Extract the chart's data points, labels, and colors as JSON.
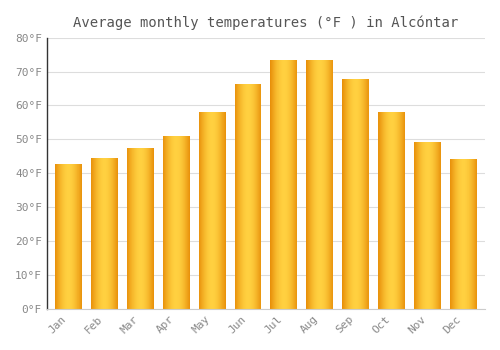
{
  "title": "Average monthly temperatures (°F ) in Alcóntar",
  "months": [
    "Jan",
    "Feb",
    "Mar",
    "Apr",
    "May",
    "Jun",
    "Jul",
    "Aug",
    "Sep",
    "Oct",
    "Nov",
    "Dec"
  ],
  "values": [
    42.8,
    44.6,
    47.5,
    50.9,
    58.1,
    66.2,
    73.4,
    73.4,
    67.8,
    58.1,
    49.1,
    44.1
  ],
  "bar_color_left": "#E8900A",
  "bar_color_mid": "#FFD040",
  "bar_color_right": "#E8900A",
  "background_color": "#FFFFFF",
  "grid_color": "#DDDDDD",
  "tick_label_color": "#888888",
  "title_color": "#555555",
  "ylim": [
    0,
    80
  ],
  "yticks": [
    0,
    10,
    20,
    30,
    40,
    50,
    60,
    70,
    80
  ],
  "ytick_labels": [
    "0°F",
    "10°F",
    "20°F",
    "30°F",
    "40°F",
    "50°F",
    "60°F",
    "70°F",
    "80°F"
  ],
  "font_family": "monospace",
  "title_fontsize": 10,
  "tick_fontsize": 8,
  "bar_width": 0.75
}
